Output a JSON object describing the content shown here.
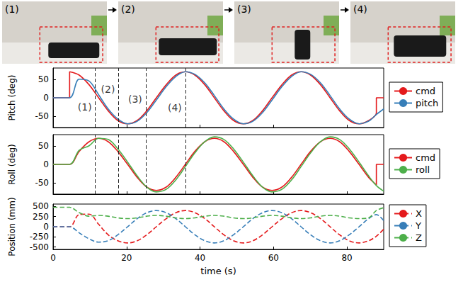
{
  "photos": {
    "labels": [
      "(1)",
      "(2)",
      "(3)",
      "(4)"
    ]
  },
  "chart_data": [
    {
      "type": "line",
      "y_label": "Pitch (deg)",
      "x": [
        0,
        4.5,
        4.5,
        7.1,
        9.8,
        12.4,
        15.0,
        17.6,
        20.3,
        22.9,
        25.5,
        28.1,
        30.8,
        33.4,
        36.0,
        38.6,
        41.3,
        43.9,
        46.5,
        49.1,
        51.8,
        54.4,
        57.0,
        59.6,
        62.3,
        64.9,
        67.5,
        70.1,
        72.8,
        75.4,
        78.0,
        80.6,
        83.3,
        85.9,
        88.0,
        88.0,
        90.0
      ],
      "series": [
        {
          "name": "cmd",
          "color": "#e41a1c",
          "line_style": "solid",
          "values": [
            0,
            0,
            70,
            61,
            35,
            0,
            -35,
            -61,
            -70,
            -61,
            -35,
            0,
            35,
            61,
            70,
            61,
            35,
            0,
            -35,
            -61,
            -70,
            -61,
            -35,
            0,
            35,
            61,
            70,
            61,
            35,
            0,
            -35,
            -61,
            -70,
            -61,
            -41,
            0,
            0
          ]
        },
        {
          "name": "pitch",
          "color": "#377eb8",
          "line_style": "solid",
          "values": [
            0,
            0,
            0,
            50,
            45,
            8,
            -30,
            -57,
            -70,
            -63,
            -40,
            -6,
            30,
            57,
            70,
            63,
            40,
            6,
            -30,
            -57,
            -70,
            -63,
            -40,
            -6,
            30,
            57,
            70,
            63,
            40,
            6,
            -30,
            -57,
            -70,
            -63,
            -45,
            -45,
            -30
          ]
        }
      ],
      "annotations": [
        {
          "x": 11.5,
          "y": -25,
          "label": "(1)"
        },
        {
          "x": 17.8,
          "y": 22,
          "label": "(2)"
        },
        {
          "x": 25.2,
          "y": -3,
          "label": "(3)"
        },
        {
          "x": 36.0,
          "y": -27,
          "label": "(4)"
        }
      ],
      "xlim": [
        0,
        90
      ],
      "xticks": [
        0,
        20,
        40,
        60,
        80
      ],
      "ylim": [
        -80,
        80
      ],
      "yticks": [
        -50,
        0,
        50
      ],
      "grid": false,
      "legend": "right",
      "tick_labels": "y"
    },
    {
      "type": "line",
      "y_label": "Roll (deg)",
      "x": [
        0,
        4.5,
        4.5,
        7.1,
        9.8,
        12.4,
        15.0,
        17.6,
        20.3,
        22.9,
        25.5,
        28.1,
        30.8,
        33.4,
        36.0,
        38.6,
        41.3,
        43.9,
        46.5,
        49.1,
        51.8,
        54.4,
        57.0,
        59.6,
        62.3,
        64.9,
        67.5,
        70.1,
        72.8,
        75.4,
        78.0,
        80.6,
        83.3,
        85.9,
        88.0,
        88.0,
        90.0
      ],
      "series": [
        {
          "name": "cmd",
          "color": "#e41a1c",
          "line_style": "solid",
          "values": [
            0,
            0,
            0,
            35,
            61,
            70,
            61,
            35,
            0,
            -35,
            -61,
            -70,
            -61,
            -35,
            0,
            35,
            61,
            70,
            61,
            35,
            0,
            -35,
            -61,
            -70,
            -61,
            -35,
            0,
            35,
            61,
            70,
            61,
            35,
            0,
            -35,
            -55,
            0,
            0
          ]
        },
        {
          "name": "roll",
          "color": "#4daf4a",
          "line_style": "solid",
          "values": [
            0,
            0,
            0,
            38,
            50,
            70,
            67,
            42,
            6,
            -31,
            -61,
            -74,
            -67,
            -42,
            -6,
            31,
            61,
            74,
            67,
            42,
            6,
            -31,
            -61,
            -74,
            -67,
            -42,
            -6,
            31,
            61,
            74,
            67,
            42,
            6,
            -31,
            -57,
            -57,
            -72
          ]
        }
      ],
      "vlines": [
        11.5,
        17.8,
        25.2,
        36.0
      ],
      "xlim": [
        0,
        90
      ],
      "xticks": [
        0,
        20,
        40,
        60,
        80
      ],
      "ylim": [
        -80,
        80
      ],
      "yticks": [
        -50,
        0,
        50
      ],
      "grid": false,
      "legend": "right",
      "tick_labels": "y"
    },
    {
      "type": "line",
      "y_label": "Position (mm)",
      "x_label": "time (s)",
      "x": [
        0,
        4.5,
        4.5,
        7.1,
        9.8,
        12.4,
        15.0,
        17.6,
        20.3,
        22.9,
        25.5,
        28.1,
        30.8,
        33.4,
        36.0,
        38.6,
        41.3,
        43.9,
        46.5,
        49.1,
        51.8,
        54.4,
        57.0,
        59.6,
        62.3,
        64.9,
        67.5,
        70.1,
        72.8,
        75.4,
        78.0,
        80.6,
        83.3,
        85.9,
        88.0,
        88.0,
        90.0
      ],
      "series": [
        {
          "name": "X",
          "color": "#e41a1c",
          "line_style": "dashed",
          "values": [
            0,
            0,
            0,
            300,
            310,
            60,
            -200,
            -346,
            -400,
            -346,
            -200,
            0,
            200,
            346,
            400,
            346,
            200,
            0,
            -200,
            -346,
            -400,
            -346,
            -200,
            0,
            200,
            346,
            400,
            346,
            200,
            0,
            -200,
            -346,
            -400,
            -346,
            -235,
            -235,
            -60
          ]
        },
        {
          "name": "Y",
          "color": "#377eb8",
          "line_style": "dashed",
          "values": [
            0,
            0,
            0,
            -150,
            -300,
            -380,
            -346,
            -200,
            0,
            200,
            346,
            400,
            346,
            200,
            0,
            -200,
            -346,
            -400,
            -346,
            -200,
            0,
            200,
            346,
            400,
            346,
            200,
            0,
            -200,
            -346,
            -400,
            -346,
            -200,
            0,
            200,
            300,
            300,
            150
          ]
        },
        {
          "name": "Z",
          "color": "#4daf4a",
          "line_style": "dashed",
          "values": [
            480,
            480,
            480,
            350,
            260,
            280,
            260,
            220,
            200,
            220,
            260,
            280,
            260,
            220,
            200,
            220,
            260,
            280,
            260,
            220,
            200,
            220,
            260,
            280,
            260,
            220,
            200,
            220,
            260,
            280,
            260,
            220,
            200,
            220,
            400,
            400,
            470
          ]
        }
      ],
      "xlim": [
        0,
        90
      ],
      "xticks": [
        0,
        20,
        40,
        60,
        80
      ],
      "ylim": [
        -560,
        560
      ],
      "yticks": [
        -500,
        -250,
        0,
        250,
        500
      ],
      "grid": false,
      "legend": "right"
    }
  ]
}
